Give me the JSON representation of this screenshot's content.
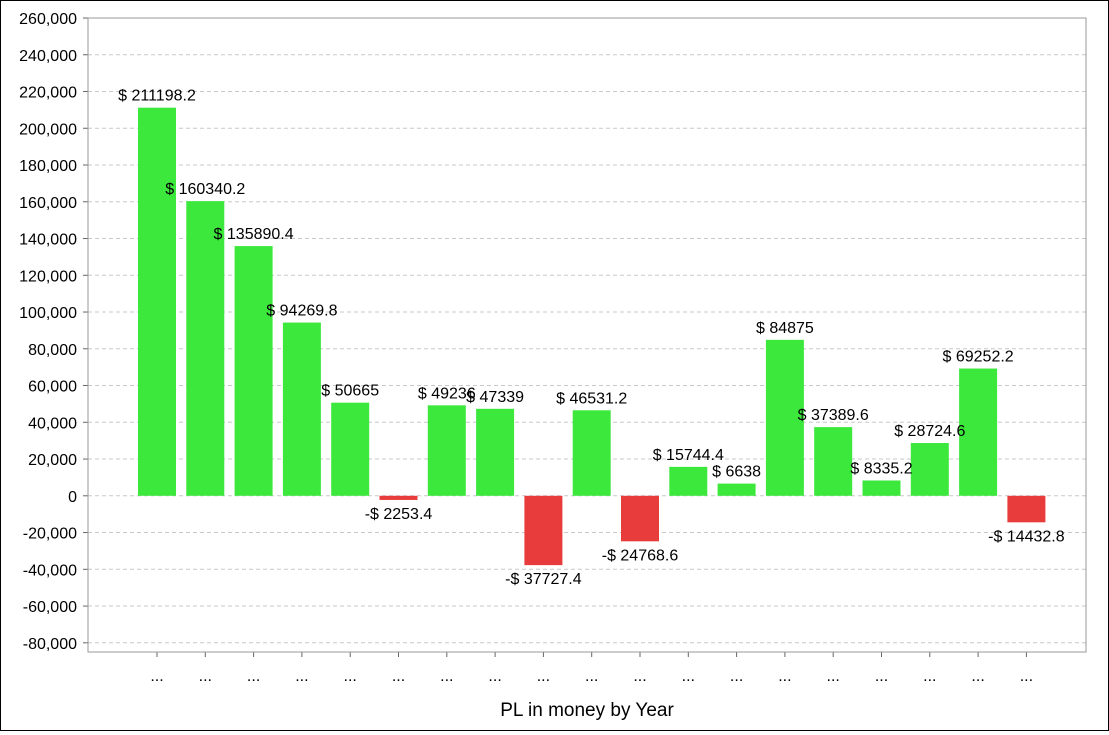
{
  "chart_data": {
    "type": "bar",
    "title": "",
    "xlabel": "PL in money by Year",
    "ylabel": "",
    "ylim": [
      -85000,
      260000
    ],
    "yticks": [
      260000,
      240000,
      220000,
      200000,
      180000,
      160000,
      140000,
      120000,
      100000,
      80000,
      60000,
      40000,
      20000,
      0,
      -20000,
      -40000,
      -60000,
      -80000
    ],
    "ytick_labels": [
      "260,000",
      "240,000",
      "220,000",
      "200,000",
      "180,000",
      "160,000",
      "140,000",
      "120,000",
      "100,000",
      "80,000",
      "60,000",
      "40,000",
      "20,000",
      "0",
      "-20,000",
      "-40,000",
      "-60,000",
      "-80,000"
    ],
    "categories": [
      "...",
      "...",
      "...",
      "...",
      "...",
      "...",
      "...",
      "...",
      "...",
      "...",
      "...",
      "...",
      "...",
      "...",
      "...",
      "...",
      "...",
      "...",
      "..."
    ],
    "values": [
      211198.2,
      160340.2,
      135890.4,
      94269.8,
      50665,
      -2253.4,
      49236,
      47339,
      -37727.4,
      46531.2,
      -24768.6,
      15744.4,
      6638,
      84875,
      37389.6,
      8335.2,
      28724.6,
      69252.2,
      -14432.8
    ],
    "data_labels": [
      "$ 211198.2",
      "$ 160340.2",
      "$ 135890.4",
      "$ 94269.8",
      "$ 50665",
      "-$ 2253.4",
      "$ 49236",
      "$ 47339",
      "-$ 37727.4",
      "$ 46531.2",
      "-$ 24768.6",
      "$ 15744.4",
      "$ 6638",
      "$ 84875",
      "$ 37389.6",
      "$ 8335.2",
      "$ 28724.6",
      "$ 69252.2",
      "-$ 14432.8"
    ],
    "grid": true,
    "colors": {
      "positive": "#3de83d",
      "negative": "#e83b3b",
      "grid": "#c8c8c8",
      "plot_border": "#999999"
    }
  }
}
